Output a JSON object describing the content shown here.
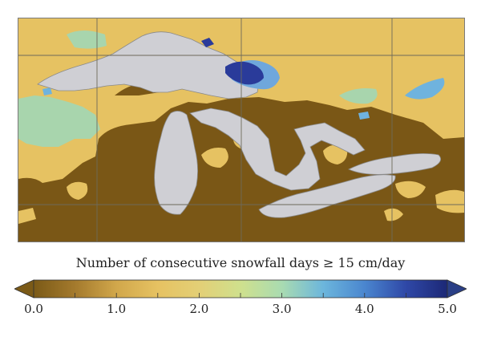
{
  "colorbar": {
    "label": "Number of consecutive snowfall days ≥ 15 cm/day",
    "ticks": [
      "0.0",
      "1.0",
      "2.0",
      "3.0",
      "4.0",
      "5.0"
    ],
    "min": 0.0,
    "max": 5.0,
    "extend_low": true,
    "extend_high": true,
    "colors": {
      "stops": [
        "#7b5a17",
        "#a47a2d",
        "#d1a74b",
        "#e6c262",
        "#e3cf76",
        "#cfe08d",
        "#a9dbb1",
        "#6cb6dc",
        "#4a86cf",
        "#2f48a7",
        "#1c2876"
      ],
      "extend_low_color": "#7b5a17",
      "extend_high_color": "#2a3f86"
    }
  },
  "map": {
    "lake_color": "#cfcfd4",
    "land_low_color": "#7a5716",
    "land_mid_color": "#e6c262",
    "land_green_color": "#a8d5ad",
    "high_value_color": "#2a3b9a",
    "grid_color": "#6e6a5a"
  }
}
